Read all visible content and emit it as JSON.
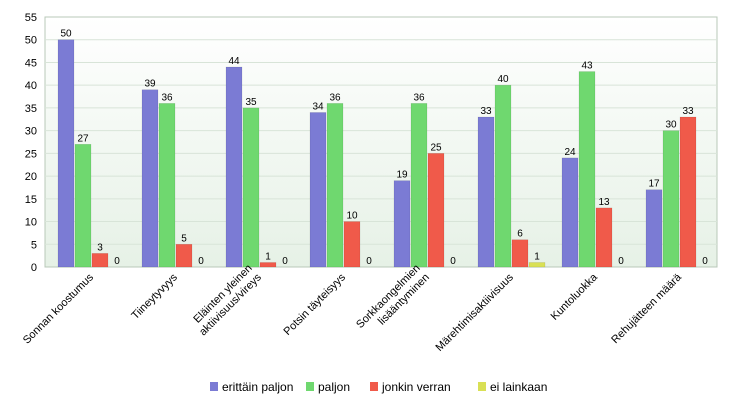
{
  "chart_data": {
    "type": "bar",
    "categories": [
      "Sonnan koostumus",
      "Tiineytyvyys",
      "Eläinten yleinen aktiivisuus/vireys",
      "Potsin täyteisyys",
      "Sorkkaongelmien lisääntyminen",
      "Märehtimisaktiivisuus",
      "Kuntoluokka",
      "Rehujätteen määrä"
    ],
    "category_lines": [
      [
        "Sonnan koostumus"
      ],
      [
        "Tiineytyvyys"
      ],
      [
        "Eläinten yleinen",
        "aktiivisuus/vireys"
      ],
      [
        "Potsin täyteisyys"
      ],
      [
        "Sorkkaongelmien",
        "lisääntyminen"
      ],
      [
        "Märehtimisaktiivisuus"
      ],
      [
        "Kuntoluokka"
      ],
      [
        "Rehujätteen määrä"
      ]
    ],
    "series": [
      {
        "name": "erittäin paljon",
        "color": "#7b7bd4",
        "values": [
          50,
          39,
          44,
          34,
          19,
          33,
          24,
          17
        ]
      },
      {
        "name": "paljon",
        "color": "#6fd86f",
        "values": [
          27,
          36,
          35,
          36,
          36,
          40,
          43,
          30
        ]
      },
      {
        "name": "jonkin verran",
        "color": "#f05a4a",
        "values": [
          3,
          5,
          1,
          10,
          25,
          6,
          13,
          33
        ]
      },
      {
        "name": "ei lainkaan",
        "color": "#d9e055",
        "values": [
          0,
          0,
          0,
          0,
          0,
          1,
          0,
          0
        ]
      }
    ],
    "ylim": [
      0,
      55
    ],
    "yticks": [
      0,
      5,
      10,
      15,
      20,
      25,
      30,
      35,
      40,
      45,
      50,
      55
    ],
    "grid": true,
    "legend_position": "bottom"
  }
}
